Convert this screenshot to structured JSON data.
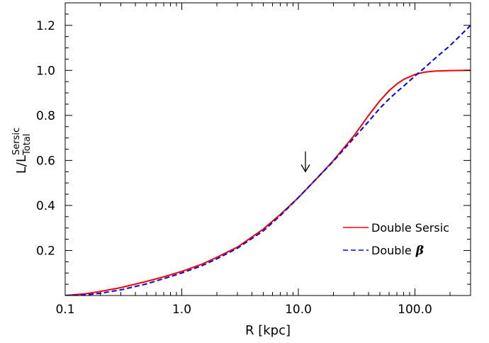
{
  "chart_data": {
    "type": "line",
    "xscale": "log",
    "xlim": [
      0.1,
      300
    ],
    "ylim": [
      0.0,
      1.3
    ],
    "x_ticks": [
      0.1,
      1.0,
      10.0,
      100.0
    ],
    "x_tick_labels": [
      "0.1",
      "1.0",
      "10.0",
      "100.0"
    ],
    "y_ticks": [
      0.2,
      0.4,
      0.6,
      0.8,
      1.0,
      1.2
    ],
    "y_tick_labels": [
      "0.2",
      "0.4",
      "0.6",
      "0.8",
      "1.0",
      "1.2"
    ],
    "xlabel": "R [kpc]",
    "ylabel": {
      "base": "L/L",
      "superscript": "Sersic",
      "subscript": "Total"
    },
    "grid": false,
    "legend_position": "lower-right",
    "annotation": {
      "type": "down-arrow",
      "x": 11.5,
      "y_tip": 0.55,
      "y_tail": 0.64
    },
    "series": [
      {
        "name": "Double Sersic",
        "legend_prefix": "Double Sersic",
        "color": "#ff0000",
        "style": "solid",
        "x": [
          0.1,
          0.15,
          0.2,
          0.3,
          0.5,
          0.7,
          1.0,
          1.5,
          2.0,
          3.0,
          5.0,
          7.0,
          10.0,
          15.0,
          20.0,
          30.0,
          40.0,
          50.0,
          60.0,
          70.0,
          80.0,
          100.0,
          120.0,
          150.0,
          200.0,
          300.0
        ],
        "values": [
          0.0,
          0.008,
          0.018,
          0.035,
          0.063,
          0.083,
          0.107,
          0.14,
          0.17,
          0.215,
          0.295,
          0.36,
          0.435,
          0.53,
          0.6,
          0.71,
          0.8,
          0.865,
          0.91,
          0.94,
          0.96,
          0.982,
          0.992,
          0.997,
          0.999,
          1.0
        ]
      },
      {
        "name": "Double β",
        "legend_prefix": "Double",
        "legend_symbol": "β",
        "color": "#0000ff",
        "style": "dashed",
        "x": [
          0.1,
          0.15,
          0.2,
          0.3,
          0.5,
          0.7,
          1.0,
          1.5,
          2.0,
          3.0,
          5.0,
          7.0,
          10.0,
          15.0,
          20.0,
          30.0,
          40.0,
          50.0,
          60.0,
          70.0,
          80.0,
          100.0,
          120.0,
          150.0,
          200.0,
          300.0
        ],
        "values": [
          0.0,
          0.003,
          0.01,
          0.025,
          0.052,
          0.075,
          0.1,
          0.133,
          0.163,
          0.21,
          0.287,
          0.355,
          0.435,
          0.53,
          0.597,
          0.7,
          0.773,
          0.832,
          0.873,
          0.905,
          0.93,
          0.975,
          1.01,
          1.055,
          1.11,
          1.2
        ]
      }
    ]
  }
}
